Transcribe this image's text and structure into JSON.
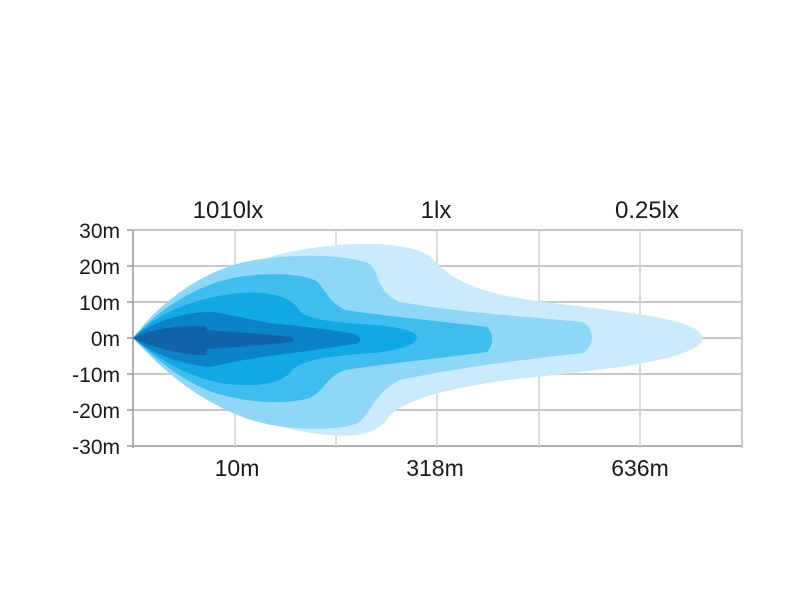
{
  "chart_data": {
    "type": "beam-pattern",
    "y_tick_labels": [
      "30m",
      "20m",
      "10m",
      "0m",
      "-10m",
      "-20m",
      "-30m"
    ],
    "y_ticks": [
      30,
      20,
      10,
      0,
      -10,
      -20,
      -30
    ],
    "top_labels": [
      "1010lx",
      "1lx",
      "0.25lx"
    ],
    "bottom_labels": [
      "10m",
      "318m",
      "636m"
    ],
    "grid": true,
    "lux_zone_colors": [
      "#c9ebfb",
      "#8fd7f6",
      "#3fbdef",
      "#11a9e3",
      "#0a84c6",
      "#0f65a8"
    ]
  }
}
